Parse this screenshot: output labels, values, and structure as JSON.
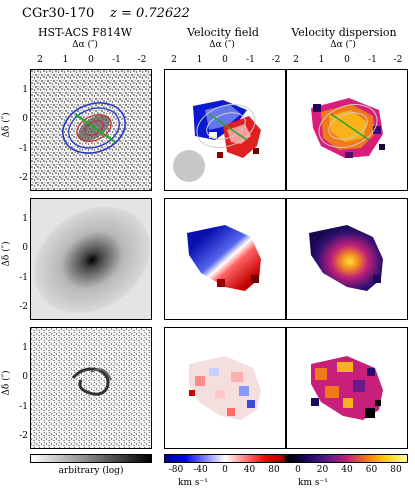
{
  "header": {
    "object_name": "CGr30-170",
    "redshift": "z = 0.72622"
  },
  "columns": [
    {
      "title": "HST-ACS F814W",
      "xlabel": "Δα (″)"
    },
    {
      "title": "Velocity field",
      "xlabel": "Δα (″)"
    },
    {
      "title": "Velocity dispersion",
      "xlabel": "Δα (″)"
    }
  ],
  "ylabel": "Δδ (″)",
  "x_ticks": [
    "2",
    "1",
    "0",
    "-1",
    "-2"
  ],
  "y_ticks": [
    "1",
    "0",
    "-1",
    "-2"
  ],
  "colorbars": [
    {
      "label": "arbitrary (log)",
      "ticks": [],
      "unit": ""
    },
    {
      "label": "",
      "ticks": [
        "-80",
        "-40",
        "0",
        "40",
        "80"
      ],
      "unit": "km s⁻¹"
    },
    {
      "label": "",
      "ticks": [
        "0",
        "20",
        "40",
        "60",
        "80"
      ],
      "unit": "km s⁻¹"
    }
  ],
  "colors": {
    "contour_blue": "#2233cc",
    "contour_red": "#cc2222",
    "axis_green": "#22aa22",
    "beam_gray": "#c8c8c8",
    "velocity_neg": "#0000cc",
    "velocity_pos": "#dd0000",
    "dispersion_low": "#1a0a5a",
    "dispersion_high": "#ffee33"
  }
}
